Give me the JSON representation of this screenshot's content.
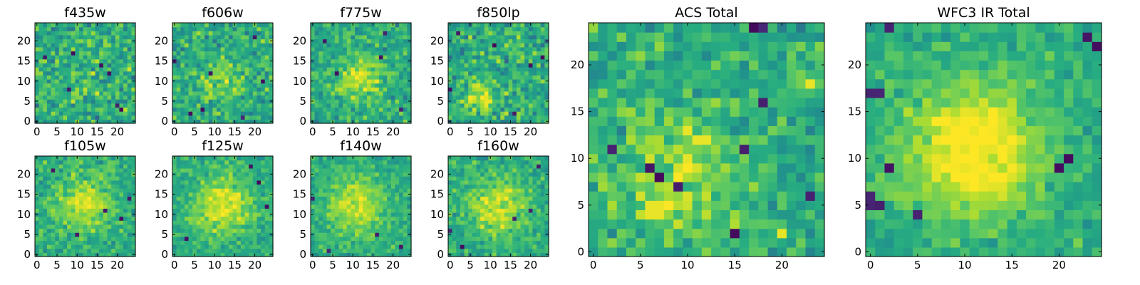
{
  "chart_data": [
    {
      "type": "heatmap",
      "title": "f435w",
      "x_ticks": [
        0,
        5,
        10,
        15,
        20
      ],
      "y_ticks": [
        0,
        5,
        10,
        15,
        20
      ],
      "xlim": [
        -0.5,
        24.5
      ],
      "ylim": [
        -0.5,
        24.5
      ],
      "grid": false,
      "colormap": "viridis",
      "seed": 11,
      "signal": {
        "center": [
          12,
          12
        ],
        "sigma": 6,
        "amplitude": 0.05
      },
      "noise": 0.22,
      "dark_pixels": [
        [
          20,
          4
        ],
        [
          18,
          12
        ],
        [
          21,
          3
        ],
        [
          9,
          17
        ],
        [
          8,
          8
        ],
        [
          2,
          16
        ],
        [
          16,
          14
        ]
      ]
    },
    {
      "type": "heatmap",
      "title": "f606w",
      "x_ticks": [
        0,
        5,
        10,
        15,
        20
      ],
      "y_ticks": [
        0,
        5,
        10,
        15,
        20
      ],
      "xlim": [
        -0.5,
        24.5
      ],
      "ylim": [
        -0.5,
        24.5
      ],
      "grid": false,
      "colormap": "viridis",
      "seed": 23,
      "signal": {
        "center": [
          12,
          10
        ],
        "sigma": 4,
        "amplitude": 0.18
      },
      "noise": 0.2,
      "dark_pixels": [
        [
          7,
          3
        ],
        [
          9,
          12
        ],
        [
          4,
          2
        ],
        [
          0,
          15
        ],
        [
          17,
          1
        ],
        [
          20,
          21
        ],
        [
          22,
          10
        ]
      ]
    },
    {
      "type": "heatmap",
      "title": "f775w",
      "x_ticks": [
        0,
        5,
        10,
        15,
        20
      ],
      "y_ticks": [
        0,
        5,
        10,
        15,
        20
      ],
      "xlim": [
        -0.5,
        24.5
      ],
      "ylim": [
        -0.5,
        24.5
      ],
      "grid": false,
      "colormap": "viridis",
      "seed": 37,
      "signal": {
        "center": [
          12,
          11
        ],
        "sigma": 4,
        "amplitude": 0.28
      },
      "noise": 0.18,
      "dark_pixels": [
        [
          3,
          20
        ],
        [
          18,
          22
        ],
        [
          22,
          3
        ],
        [
          6,
          12
        ],
        [
          17,
          16
        ]
      ]
    },
    {
      "type": "heatmap",
      "title": "f850lp",
      "x_ticks": [
        0,
        5,
        10,
        15,
        20
      ],
      "y_ticks": [
        0,
        5,
        10,
        15,
        20
      ],
      "xlim": [
        -0.5,
        24.5
      ],
      "ylim": [
        -0.5,
        24.5
      ],
      "grid": false,
      "colormap": "viridis",
      "seed": 53,
      "signal": {
        "center": [
          7,
          6
        ],
        "sigma": 3,
        "amplitude": 0.3
      },
      "noise": 0.22,
      "dark_pixels": [
        [
          2,
          22
        ],
        [
          20,
          14
        ],
        [
          16,
          2
        ],
        [
          0,
          8
        ],
        [
          23,
          16
        ],
        [
          11,
          19
        ]
      ]
    },
    {
      "type": "heatmap",
      "title": "f105w",
      "x_ticks": [
        0,
        5,
        10,
        15,
        20
      ],
      "y_ticks": [
        0,
        5,
        10,
        15,
        20
      ],
      "xlim": [
        -0.5,
        24.5
      ],
      "ylim": [
        -0.5,
        24.5
      ],
      "grid": false,
      "colormap": "viridis",
      "seed": 71,
      "signal": {
        "center": [
          12,
          13
        ],
        "sigma": 5,
        "amplitude": 0.3
      },
      "noise": 0.15,
      "dark_pixels": [
        [
          17,
          11
        ],
        [
          21,
          9
        ],
        [
          10,
          5
        ],
        [
          4,
          21
        ],
        [
          23,
          14
        ]
      ]
    },
    {
      "type": "heatmap",
      "title": "f125w",
      "x_ticks": [
        0,
        5,
        10,
        15,
        20
      ],
      "y_ticks": [
        0,
        5,
        10,
        15,
        20
      ],
      "xlim": [
        -0.5,
        24.5
      ],
      "ylim": [
        -0.5,
        24.5
      ],
      "grid": false,
      "colormap": "viridis",
      "seed": 89,
      "signal": {
        "center": [
          12,
          12
        ],
        "sigma": 5,
        "amplitude": 0.35
      },
      "noise": 0.14,
      "dark_pixels": [
        [
          21,
          18
        ],
        [
          3,
          4
        ],
        [
          23,
          12
        ],
        [
          19,
          22
        ]
      ]
    },
    {
      "type": "heatmap",
      "title": "f140w",
      "x_ticks": [
        0,
        5,
        10,
        15,
        20
      ],
      "y_ticks": [
        0,
        5,
        10,
        15,
        20
      ],
      "xlim": [
        -0.5,
        24.5
      ],
      "ylim": [
        -0.5,
        24.5
      ],
      "grid": false,
      "colormap": "viridis",
      "seed": 97,
      "signal": {
        "center": [
          11,
          12
        ],
        "sigma": 5,
        "amplitude": 0.3
      },
      "noise": 0.13,
      "dark_pixels": [
        [
          0,
          14
        ],
        [
          22,
          2
        ],
        [
          4,
          1
        ],
        [
          16,
          5
        ]
      ]
    },
    {
      "type": "heatmap",
      "title": "f160w",
      "x_ticks": [
        0,
        5,
        10,
        15,
        20
      ],
      "y_ticks": [
        0,
        5,
        10,
        15,
        20
      ],
      "xlim": [
        -0.5,
        24.5
      ],
      "ylim": [
        -0.5,
        24.5
      ],
      "grid": false,
      "colormap": "viridis",
      "seed": 113,
      "signal": {
        "center": [
          12,
          12
        ],
        "sigma": 5,
        "amplitude": 0.32
      },
      "noise": 0.15,
      "dark_pixels": [
        [
          0,
          6
        ],
        [
          20,
          11
        ],
        [
          3,
          2
        ],
        [
          22,
          22
        ],
        [
          16,
          9
        ]
      ]
    },
    {
      "type": "heatmap",
      "title": "ACS Total",
      "x_ticks": [
        0,
        5,
        10,
        15,
        20
      ],
      "y_ticks": [
        0,
        5,
        10,
        15,
        20
      ],
      "xlim": [
        -0.5,
        24.5
      ],
      "ylim": [
        -0.5,
        24.5
      ],
      "grid": false,
      "colormap": "viridis",
      "seed": 131,
      "signal": {
        "center": [
          9,
          8
        ],
        "sigma": 5,
        "amplitude": 0.22
      },
      "noise": 0.17,
      "dark_pixels": [
        [
          2,
          11
        ],
        [
          6,
          9
        ],
        [
          7,
          8
        ],
        [
          9,
          7
        ],
        [
          18,
          24
        ],
        [
          17,
          24
        ],
        [
          18,
          16
        ],
        [
          23,
          6
        ],
        [
          16,
          11
        ],
        [
          15,
          2
        ]
      ],
      "bright_pixels": [
        [
          6,
          5
        ],
        [
          7,
          5
        ],
        [
          6,
          4
        ],
        [
          7,
          4
        ],
        [
          10,
          13
        ],
        [
          11,
          12
        ],
        [
          12,
          12
        ],
        [
          20,
          2
        ],
        [
          23,
          18
        ]
      ]
    },
    {
      "type": "heatmap",
      "title": "WFC3 IR Total",
      "x_ticks": [
        0,
        5,
        10,
        15,
        20
      ],
      "y_ticks": [
        0,
        5,
        10,
        15,
        20
      ],
      "xlim": [
        -0.5,
        24.5
      ],
      "ylim": [
        -0.5,
        24.5
      ],
      "grid": false,
      "colormap": "viridis",
      "seed": 149,
      "signal": {
        "center": [
          11,
          11
        ],
        "sigma": 5,
        "amplitude": 0.45
      },
      "noise": 0.12,
      "dark_pixels": [
        [
          0,
          5
        ],
        [
          0,
          6
        ],
        [
          1,
          5
        ],
        [
          1,
          17
        ],
        [
          0,
          17
        ],
        [
          20,
          9
        ],
        [
          21,
          10
        ],
        [
          5,
          4
        ],
        [
          24,
          22
        ],
        [
          23,
          23
        ],
        [
          2,
          24
        ],
        [
          2,
          9
        ]
      ],
      "bright_pixels": [
        [
          12,
          10
        ],
        [
          12,
          11
        ],
        [
          13,
          9
        ],
        [
          11,
          13
        ]
      ]
    }
  ]
}
